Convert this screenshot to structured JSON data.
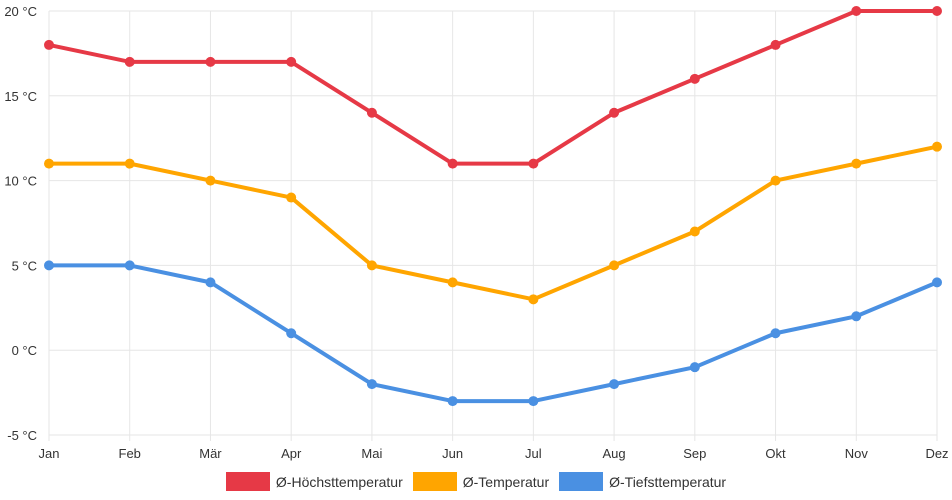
{
  "chart_data": {
    "type": "line",
    "title": "",
    "xlabel": "",
    "ylabel": "",
    "unit": "°C",
    "categories": [
      "Jan",
      "Feb",
      "Mär",
      "Apr",
      "Mai",
      "Jun",
      "Jul",
      "Aug",
      "Sep",
      "Okt",
      "Nov",
      "Dez"
    ],
    "ylim": [
      -5,
      20
    ],
    "yticks": [
      20,
      15,
      10,
      5,
      0,
      -5
    ],
    "ytick_labels": [
      "20 °C",
      "15 °C",
      "10 °C",
      "5 °C",
      "0 °C",
      "-5 °C"
    ],
    "grid": true,
    "legend_position": "bottom",
    "series": [
      {
        "name": "Ø-Höchsttemperatur",
        "color": "#e63946",
        "values": [
          18,
          17,
          17,
          17,
          14,
          11,
          11,
          14,
          16,
          18,
          20,
          20
        ]
      },
      {
        "name": "Ø-Temperatur",
        "color": "#ffa500",
        "values": [
          11,
          11,
          10,
          9,
          5,
          4,
          3,
          5,
          7,
          10,
          11,
          12
        ]
      },
      {
        "name": "Ø-Tiefsttemperatur",
        "color": "#4a90e2",
        "values": [
          5,
          5,
          4,
          1,
          -2,
          -3,
          -3,
          -2,
          -1,
          1,
          2,
          4
        ]
      }
    ]
  }
}
